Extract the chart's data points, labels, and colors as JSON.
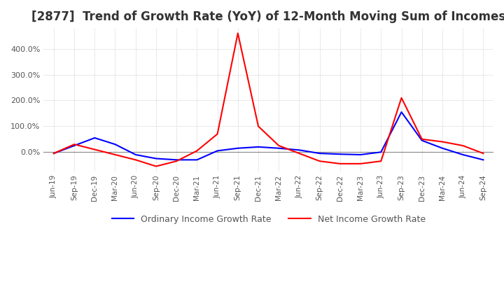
{
  "title": "[2877]  Trend of Growth Rate (YoY) of 12-Month Moving Sum of Incomes",
  "title_fontsize": 12,
  "legend_labels": [
    "Ordinary Income Growth Rate",
    "Net Income Growth Rate"
  ],
  "legend_colors": [
    "#0000FF",
    "#FF0000"
  ],
  "background_color": "#FFFFFF",
  "grid_color": "#BBBBBB",
  "x_labels": [
    "Jun-19",
    "Sep-19",
    "Dec-19",
    "Mar-20",
    "Jun-20",
    "Sep-20",
    "Dec-20",
    "Mar-21",
    "Jun-21",
    "Sep-21",
    "Dec-21",
    "Mar-22",
    "Jun-22",
    "Sep-22",
    "Dec-22",
    "Mar-23",
    "Jun-23",
    "Sep-23",
    "Dec-23",
    "Mar-24",
    "Jun-24",
    "Sep-24"
  ],
  "ordinary_income": [
    -5.0,
    25.0,
    55.0,
    30.0,
    -10.0,
    -25.0,
    -30.0,
    -30.0,
    5.0,
    15.0,
    20.0,
    15.0,
    8.0,
    -5.0,
    -8.0,
    -10.0,
    0.0,
    155.0,
    45.0,
    15.0,
    -10.0,
    -30.0
  ],
  "net_income": [
    -5.0,
    30.0,
    10.0,
    -10.0,
    -30.0,
    -55.0,
    -35.0,
    5.0,
    70.0,
    460.0,
    100.0,
    25.0,
    -5.0,
    -35.0,
    -45.0,
    -45.0,
    -35.0,
    210.0,
    50.0,
    40.0,
    25.0,
    -5.0
  ],
  "ylim_min": -75,
  "ylim_max": 480,
  "ytick_values": [
    0.0,
    100.0,
    200.0,
    300.0,
    400.0
  ],
  "line_width": 1.5
}
